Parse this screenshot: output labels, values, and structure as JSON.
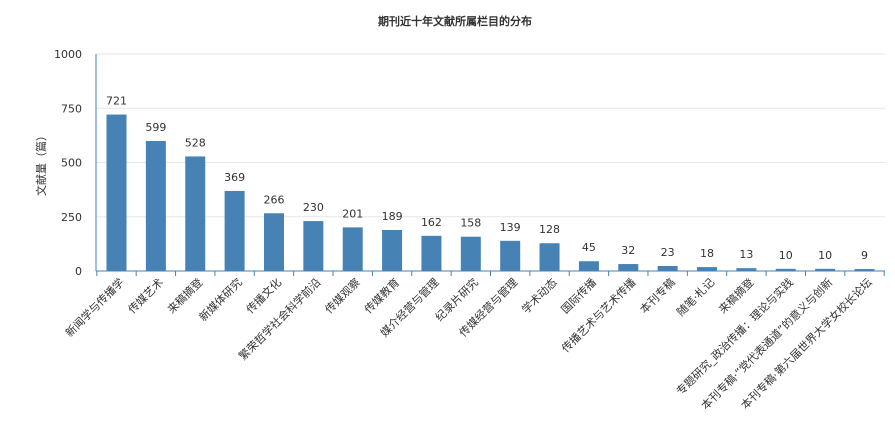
{
  "chart_data": {
    "type": "bar",
    "title": "期刊近十年文献所属栏目的分布",
    "xlabel": "",
    "ylabel": "文献量（篇）",
    "ylim": [
      0,
      1000
    ],
    "yticks": [
      0,
      250,
      500,
      750,
      1000
    ],
    "grid": true,
    "legend": "none",
    "bar_color": "#4682b4",
    "categories": [
      "新闻学与传播学",
      "传媒艺术",
      "来稿摘登",
      "新媒体研究",
      "传播文化",
      "繁荣哲学社会科学前沿",
      "传媒观察",
      "传媒教育",
      "媒介经营与管理",
      "纪录片研究",
      "传媒经营与管理",
      "学术动态",
      "国际传播",
      "传播艺术与艺术传播",
      "本刊专稿",
      "随笔·札记",
      "来稿摘登",
      "专题研究_政治传播：理论与实践",
      "本刊专稿·“党代表通道”的意义与创新",
      "本刊专稿·第六届世界大学女校长论坛"
    ],
    "values": [
      721,
      599,
      528,
      369,
      266,
      230,
      201,
      189,
      162,
      158,
      139,
      128,
      45,
      32,
      23,
      18,
      13,
      10,
      10,
      9
    ]
  }
}
